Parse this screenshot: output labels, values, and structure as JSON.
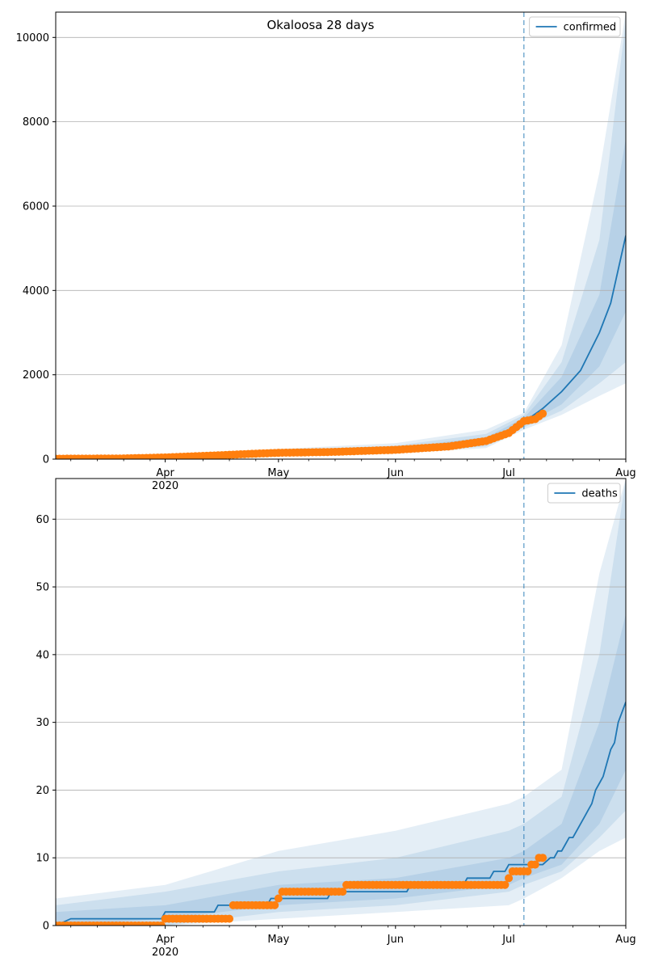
{
  "figure": {
    "suptitle": "Okaloosa 28 days"
  },
  "style": {
    "model_color": "#1f77b4",
    "observed_color": "#ff7f0e",
    "band_color": "#1f77b4",
    "grid_color": "#b0b0b0",
    "vline_color": "#1f77b4"
  },
  "chart_data": [
    {
      "type": "line",
      "panel": "top",
      "title": "Okaloosa 28 days",
      "legend": [
        "confirmed"
      ],
      "legend_position": "top-right",
      "grid": "horizontal",
      "x_range": [
        "2020-03-03",
        "2020-08-01"
      ],
      "ylim": [
        0,
        10600
      ],
      "y_ticks": [
        0,
        2000,
        4000,
        6000,
        8000,
        10000
      ],
      "x_ticks": [
        {
          "date": "2020-04-01",
          "label": "Apr",
          "sub": "2020"
        },
        {
          "date": "2020-05-01",
          "label": "May",
          "sub": ""
        },
        {
          "date": "2020-06-01",
          "label": "Jun",
          "sub": ""
        },
        {
          "date": "2020-07-01",
          "label": "Jul",
          "sub": ""
        },
        {
          "date": "2020-08-01",
          "label": "Aug",
          "sub": ""
        }
      ],
      "forecast_start": "2020-07-05",
      "series": [
        {
          "name": "confirmed",
          "kind": "model",
          "points": [
            [
              "2020-03-03",
              10
            ],
            [
              "2020-03-20",
              15
            ],
            [
              "2020-04-01",
              40
            ],
            [
              "2020-04-15",
              90
            ],
            [
              "2020-04-25",
              130
            ],
            [
              "2020-05-01",
              150
            ],
            [
              "2020-05-15",
              170
            ],
            [
              "2020-06-01",
              220
            ],
            [
              "2020-06-15",
              300
            ],
            [
              "2020-06-25",
              430
            ],
            [
              "2020-07-01",
              620
            ],
            [
              "2020-07-05",
              880
            ],
            [
              "2020-07-10",
              1200
            ],
            [
              "2020-07-15",
              1600
            ],
            [
              "2020-07-20",
              2100
            ],
            [
              "2020-07-25",
              3000
            ],
            [
              "2020-07-28",
              3700
            ],
            [
              "2020-08-01",
              5300
            ]
          ]
        },
        {
          "kind": "observed",
          "points": [
            [
              "2020-03-03",
              10
            ],
            [
              "2020-03-20",
              15
            ],
            [
              "2020-04-01",
              40
            ],
            [
              "2020-04-15",
              90
            ],
            [
              "2020-04-25",
              130
            ],
            [
              "2020-05-01",
              150
            ],
            [
              "2020-05-15",
              170
            ],
            [
              "2020-06-01",
              220
            ],
            [
              "2020-06-15",
              300
            ],
            [
              "2020-06-25",
              430
            ],
            [
              "2020-07-01",
              620
            ],
            [
              "2020-07-05",
              900
            ],
            [
              "2020-07-08",
              950
            ],
            [
              "2020-07-10",
              1080
            ]
          ]
        }
      ],
      "bands": [
        {
          "points": [
            [
              "2020-03-03",
              5,
              15
            ],
            [
              "2020-04-01",
              30,
              55
            ],
            [
              "2020-05-01",
              120,
              180
            ],
            [
              "2020-06-01",
              180,
              270
            ],
            [
              "2020-06-25",
              360,
              520
            ],
            [
              "2020-07-05",
              800,
              980
            ],
            [
              "2020-07-15",
              1300,
              1950
            ],
            [
              "2020-07-25",
              2200,
              3900
            ],
            [
              "2020-08-01",
              3500,
              7600
            ]
          ]
        },
        {
          "points": [
            [
              "2020-03-03",
              3,
              20
            ],
            [
              "2020-04-01",
              20,
              70
            ],
            [
              "2020-05-01",
              100,
              210
            ],
            [
              "2020-06-01",
              150,
              320
            ],
            [
              "2020-06-25",
              300,
              600
            ],
            [
              "2020-07-05",
              750,
              1050
            ],
            [
              "2020-07-15",
              1150,
              2300
            ],
            [
              "2020-07-25",
              1800,
              5200
            ],
            [
              "2020-08-01",
              2300,
              10400
            ]
          ]
        },
        {
          "points": [
            [
              "2020-03-03",
              1,
              30
            ],
            [
              "2020-04-01",
              10,
              90
            ],
            [
              "2020-05-01",
              80,
              240
            ],
            [
              "2020-06-01",
              130,
              380
            ],
            [
              "2020-06-25",
              260,
              700
            ],
            [
              "2020-07-05",
              700,
              1100
            ],
            [
              "2020-07-15",
              1050,
              2700
            ],
            [
              "2020-07-25",
              1500,
              6800
            ],
            [
              "2020-08-01",
              1800,
              10600
            ]
          ]
        }
      ]
    },
    {
      "type": "line",
      "panel": "bottom",
      "legend": [
        "deaths"
      ],
      "legend_position": "top-right",
      "grid": "horizontal",
      "x_range": [
        "2020-03-03",
        "2020-08-01"
      ],
      "ylim": [
        0,
        66
      ],
      "y_ticks": [
        0,
        10,
        20,
        30,
        40,
        50,
        60
      ],
      "x_ticks": [
        {
          "date": "2020-04-01",
          "label": "Apr",
          "sub": "2020"
        },
        {
          "date": "2020-05-01",
          "label": "May",
          "sub": ""
        },
        {
          "date": "2020-06-01",
          "label": "Jun",
          "sub": ""
        },
        {
          "date": "2020-07-01",
          "label": "Jul",
          "sub": ""
        },
        {
          "date": "2020-08-01",
          "label": "Aug",
          "sub": ""
        }
      ],
      "forecast_start": "2020-07-05",
      "series": [
        {
          "name": "deaths",
          "kind": "model",
          "points": [
            [
              "2020-03-03",
              0
            ],
            [
              "2020-03-07",
              1
            ],
            [
              "2020-03-31",
              1
            ],
            [
              "2020-04-01",
              2
            ],
            [
              "2020-04-14",
              2
            ],
            [
              "2020-04-15",
              3
            ],
            [
              "2020-04-20",
              3
            ],
            [
              "2020-04-21",
              3
            ],
            [
              "2020-04-28",
              3
            ],
            [
              "2020-04-29",
              4
            ],
            [
              "2020-05-01",
              4
            ],
            [
              "2020-05-14",
              4
            ],
            [
              "2020-05-15",
              5
            ],
            [
              "2020-05-30",
              5
            ],
            [
              "2020-05-31",
              5
            ],
            [
              "2020-06-04",
              5
            ],
            [
              "2020-06-05",
              6
            ],
            [
              "2020-06-19",
              6
            ],
            [
              "2020-06-20",
              7
            ],
            [
              "2020-06-26",
              7
            ],
            [
              "2020-06-27",
              8
            ],
            [
              "2020-06-30",
              8
            ],
            [
              "2020-07-01",
              9
            ],
            [
              "2020-07-04",
              9
            ],
            [
              "2020-07-06",
              9
            ],
            [
              "2020-07-08",
              9
            ],
            [
              "2020-07-10",
              9
            ],
            [
              "2020-07-12",
              10
            ],
            [
              "2020-07-13",
              10
            ],
            [
              "2020-07-14",
              11
            ],
            [
              "2020-07-15",
              11
            ],
            [
              "2020-07-16",
              12
            ],
            [
              "2020-07-17",
              13
            ],
            [
              "2020-07-18",
              13
            ],
            [
              "2020-07-19",
              14
            ],
            [
              "2020-07-20",
              15
            ],
            [
              "2020-07-21",
              16
            ],
            [
              "2020-07-22",
              17
            ],
            [
              "2020-07-23",
              18
            ],
            [
              "2020-07-24",
              20
            ],
            [
              "2020-07-25",
              21
            ],
            [
              "2020-07-26",
              22
            ],
            [
              "2020-07-27",
              24
            ],
            [
              "2020-07-28",
              26
            ],
            [
              "2020-07-29",
              27
            ],
            [
              "2020-07-30",
              30
            ],
            [
              "2020-08-01",
              33
            ]
          ]
        },
        {
          "kind": "observed",
          "points": [
            [
              "2020-03-03",
              0
            ],
            [
              "2020-03-31",
              0
            ],
            [
              "2020-04-01",
              1
            ],
            [
              "2020-04-18",
              1
            ],
            [
              "2020-04-19",
              3
            ],
            [
              "2020-04-30",
              3
            ],
            [
              "2020-05-01",
              4
            ],
            [
              "2020-05-02",
              5
            ],
            [
              "2020-05-18",
              5
            ],
            [
              "2020-05-19",
              6
            ],
            [
              "2020-06-30",
              6
            ],
            [
              "2020-07-01",
              7
            ],
            [
              "2020-07-02",
              8
            ],
            [
              "2020-07-04",
              8
            ],
            [
              "2020-07-05",
              8
            ],
            [
              "2020-07-06",
              8
            ],
            [
              "2020-07-07",
              9
            ],
            [
              "2020-07-08",
              9
            ],
            [
              "2020-07-09",
              10
            ],
            [
              "2020-07-10",
              10
            ]
          ]
        }
      ],
      "bands": [
        {
          "points": [
            [
              "2020-03-03",
              0,
              2
            ],
            [
              "2020-04-01",
              1,
              3
            ],
            [
              "2020-05-01",
              3,
              6
            ],
            [
              "2020-06-01",
              4,
              7
            ],
            [
              "2020-07-01",
              6,
              10
            ],
            [
              "2020-07-05",
              7,
              11
            ],
            [
              "2020-07-15",
              9,
              15
            ],
            [
              "2020-07-25",
              15,
              30
            ],
            [
              "2020-08-01",
              23,
              46
            ]
          ]
        },
        {
          "points": [
            [
              "2020-03-03",
              0,
              3
            ],
            [
              "2020-04-01",
              0,
              5
            ],
            [
              "2020-05-01",
              2,
              8
            ],
            [
              "2020-06-01",
              3,
              10
            ],
            [
              "2020-07-01",
              5,
              14
            ],
            [
              "2020-07-05",
              6,
              15
            ],
            [
              "2020-07-15",
              8,
              19
            ],
            [
              "2020-07-25",
              13,
              40
            ],
            [
              "2020-08-01",
              17,
              66
            ]
          ]
        },
        {
          "points": [
            [
              "2020-03-03",
              0,
              4
            ],
            [
              "2020-04-01",
              0,
              6
            ],
            [
              "2020-05-01",
              1,
              11
            ],
            [
              "2020-06-01",
              2,
              14
            ],
            [
              "2020-07-01",
              3,
              18
            ],
            [
              "2020-07-05",
              4,
              19
            ],
            [
              "2020-07-15",
              7,
              23
            ],
            [
              "2020-07-25",
              11,
              52
            ],
            [
              "2020-08-01",
              13,
              66
            ]
          ]
        }
      ]
    }
  ]
}
